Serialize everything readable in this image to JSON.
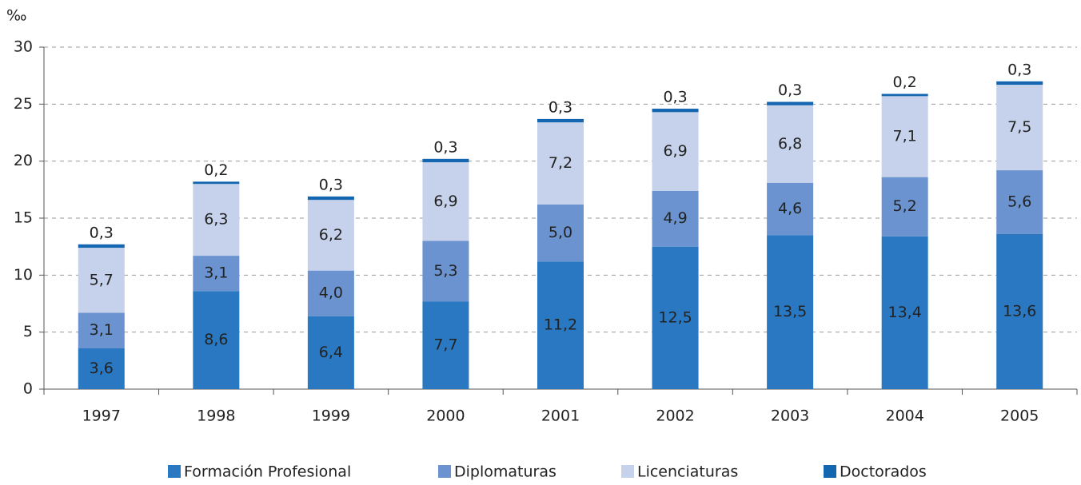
{
  "chart_data": {
    "type": "bar",
    "stacked": true,
    "y_label": "‰",
    "categories": [
      "1997",
      "1998",
      "1999",
      "2000",
      "2001",
      "2002",
      "2003",
      "2004",
      "2005"
    ],
    "series": [
      {
        "name": "Formación Profesional",
        "color": "#2a78c1",
        "values": [
          3.6,
          8.6,
          6.4,
          7.7,
          11.2,
          12.5,
          13.5,
          13.4,
          13.6
        ],
        "value_labels": [
          "3,6",
          "8,6",
          "6,4",
          "7,7",
          "11,2",
          "12,5",
          "13,5",
          "13,4",
          "13,6"
        ]
      },
      {
        "name": "Diplomaturas",
        "color": "#6a93cf",
        "values": [
          3.1,
          3.1,
          4.0,
          5.3,
          5.0,
          4.9,
          4.6,
          5.2,
          5.6
        ],
        "value_labels": [
          "3,1",
          "3,1",
          "4,0",
          "5,3",
          "5,0",
          "4,9",
          "4,6",
          "5,2",
          "5,6"
        ]
      },
      {
        "name": "Licenciaturas",
        "color": "#c6d2eb",
        "values": [
          5.7,
          6.3,
          6.2,
          6.9,
          7.2,
          6.9,
          6.8,
          7.1,
          7.5
        ],
        "value_labels": [
          "5,7",
          "6,3",
          "6,2",
          "6,9",
          "7,2",
          "6,9",
          "6,8",
          "7,1",
          "7,5"
        ]
      },
      {
        "name": "Doctorados",
        "color": "#1466b1",
        "values": [
          0.3,
          0.2,
          0.3,
          0.3,
          0.3,
          0.3,
          0.3,
          0.2,
          0.3
        ],
        "value_labels": [
          "0,3",
          "0,2",
          "0,3",
          "0,3",
          "0,3",
          "0,3",
          "0,3",
          "0,2",
          "0,3"
        ],
        "label_position": "above"
      }
    ],
    "ylim": [
      0,
      30
    ],
    "yticks": [
      0,
      5,
      10,
      15,
      20,
      25,
      30
    ],
    "grid": true,
    "legend": "bottom"
  }
}
